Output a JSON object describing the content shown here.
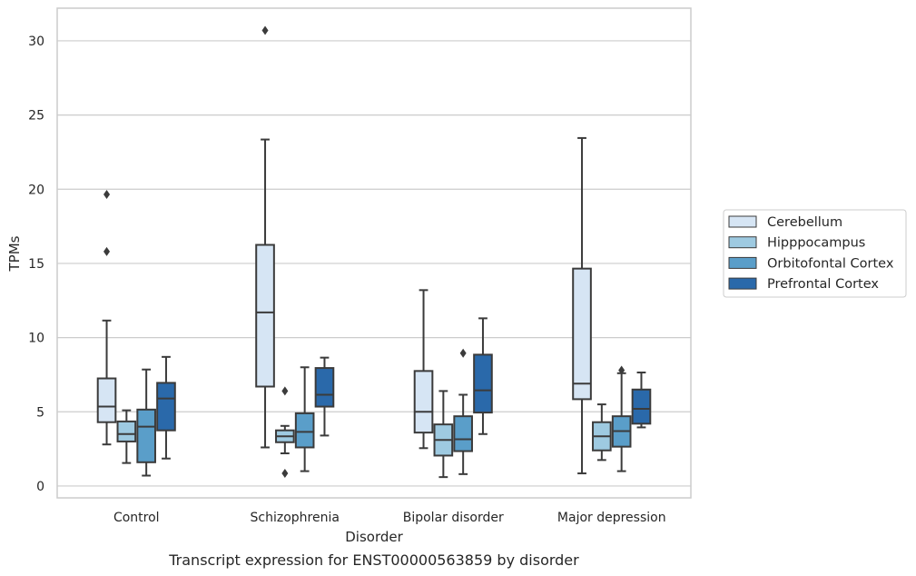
{
  "caption": "Transcript expression for ENST00000563859 by disorder",
  "chart_data": {
    "type": "box",
    "title": "",
    "xlabel": "Disorder",
    "ylabel": "TPMs",
    "ylim": [
      -0.8,
      32.2
    ],
    "yticks": [
      0,
      5,
      10,
      15,
      20,
      25,
      30
    ],
    "ytick_labels": [
      "0",
      "5",
      "10",
      "15",
      "20",
      "25",
      "30"
    ],
    "grid": "horizontal",
    "legend_position": "right",
    "categories": [
      "Control",
      "Schizophrenia",
      "Bipolar disorder",
      "Major depression"
    ],
    "series": [
      {
        "name": "Cerebellum",
        "color": "#d6e5f4",
        "boxes": [
          {
            "whisker_low": 2.8,
            "q1": 4.3,
            "median": 5.35,
            "q3": 7.25,
            "whisker_high": 11.15,
            "outliers": [
              19.65,
              15.8
            ]
          },
          {
            "whisker_low": 2.6,
            "q1": 6.7,
            "median": 11.7,
            "q3": 16.25,
            "whisker_high": 23.35,
            "outliers": [
              30.7
            ]
          },
          {
            "whisker_low": 2.55,
            "q1": 3.6,
            "median": 5.0,
            "q3": 7.75,
            "whisker_high": 13.2,
            "outliers": []
          },
          {
            "whisker_low": 0.85,
            "q1": 5.85,
            "median": 6.9,
            "q3": 14.65,
            "whisker_high": 23.45,
            "outliers": []
          }
        ]
      },
      {
        "name": "Hipppocampus",
        "color": "#9ecae1",
        "boxes": [
          {
            "whisker_low": 1.55,
            "q1": 3.0,
            "median": 3.5,
            "q3": 4.35,
            "whisker_high": 5.1,
            "outliers": []
          },
          {
            "whisker_low": 2.2,
            "q1": 2.95,
            "median": 3.35,
            "q3": 3.75,
            "whisker_high": 4.05,
            "outliers": [
              6.4,
              0.85
            ]
          },
          {
            "whisker_low": 0.6,
            "q1": 2.05,
            "median": 3.1,
            "q3": 4.15,
            "whisker_high": 6.4,
            "outliers": []
          },
          {
            "whisker_low": 1.75,
            "q1": 2.4,
            "median": 3.35,
            "q3": 4.3,
            "whisker_high": 5.5,
            "outliers": []
          }
        ]
      },
      {
        "name": "Orbitofontal Cortex",
        "color": "#5a9ec9",
        "boxes": [
          {
            "whisker_low": 0.7,
            "q1": 1.6,
            "median": 4.0,
            "q3": 5.15,
            "whisker_high": 7.85,
            "outliers": []
          },
          {
            "whisker_low": 1.0,
            "q1": 2.6,
            "median": 3.65,
            "q3": 4.9,
            "whisker_high": 8.0,
            "outliers": []
          },
          {
            "whisker_low": 0.8,
            "q1": 2.35,
            "median": 3.15,
            "q3": 4.7,
            "whisker_high": 6.15,
            "outliers": [
              8.95
            ]
          },
          {
            "whisker_low": 1.0,
            "q1": 2.65,
            "median": 3.7,
            "q3": 4.7,
            "whisker_high": 7.6,
            "outliers": [
              7.8
            ]
          }
        ]
      },
      {
        "name": "Prefrontal Cortex",
        "color": "#2a69aa",
        "boxes": [
          {
            "whisker_low": 1.85,
            "q1": 3.75,
            "median": 5.9,
            "q3": 6.95,
            "whisker_high": 8.7,
            "outliers": []
          },
          {
            "whisker_low": 3.4,
            "q1": 5.35,
            "median": 6.15,
            "q3": 7.95,
            "whisker_high": 8.65,
            "outliers": []
          },
          {
            "whisker_low": 3.5,
            "q1": 4.95,
            "median": 6.45,
            "q3": 8.85,
            "whisker_high": 11.3,
            "outliers": []
          },
          {
            "whisker_low": 3.95,
            "q1": 4.2,
            "median": 5.2,
            "q3": 6.5,
            "whisker_high": 7.65,
            "outliers": []
          }
        ]
      }
    ]
  }
}
